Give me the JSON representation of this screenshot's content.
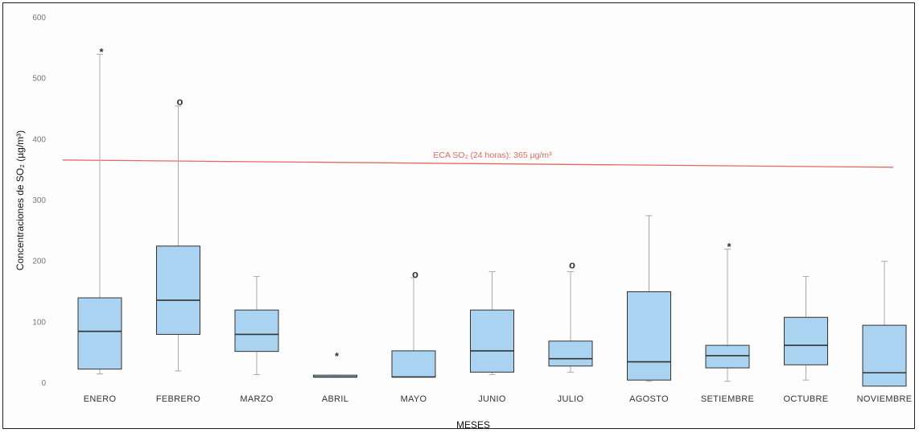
{
  "chart_data": {
    "type": "box",
    "xlabel": "MESES",
    "ylabel": "Concentraciones de SO₂ (µg/m³)",
    "ylim": [
      0,
      600
    ],
    "y_ticks": [
      0,
      100,
      200,
      300,
      400,
      500,
      600
    ],
    "grid": false,
    "categories": [
      "ENERO",
      "FEBRERO",
      "MARZO",
      "ABRIL",
      "MAYO",
      "JUNIO",
      "JULIO",
      "AGOSTO",
      "SETIEMBRE",
      "OCTUBRE",
      "NOVIEMBRE"
    ],
    "boxes": [
      {
        "min": 15,
        "q1": 23,
        "median": 85,
        "q3": 140,
        "max": 540,
        "outliers": [
          {
            "value": 550,
            "symbol": "*"
          }
        ]
      },
      {
        "min": 20,
        "q1": 80,
        "median": 136,
        "q3": 225,
        "max": 455,
        "outliers": [
          {
            "value": 463,
            "symbol": "o"
          }
        ]
      },
      {
        "min": 14,
        "q1": 52,
        "median": 80,
        "q3": 120,
        "max": 175,
        "outliers": []
      },
      {
        "min": 10,
        "q1": 10,
        "median": 10,
        "q3": 13,
        "max": 13,
        "outliers": [
          {
            "value": 50,
            "symbol": "*"
          }
        ]
      },
      {
        "min": 10,
        "q1": 10,
        "median": 10,
        "q3": 53,
        "max": 173,
        "outliers": [
          {
            "value": 180,
            "symbol": "o"
          }
        ]
      },
      {
        "min": 14,
        "q1": 18,
        "median": 53,
        "q3": 120,
        "max": 183,
        "outliers": []
      },
      {
        "min": 18,
        "q1": 28,
        "median": 40,
        "q3": 69,
        "max": 183,
        "outliers": [
          {
            "value": 195,
            "symbol": "o"
          }
        ]
      },
      {
        "min": 3,
        "q1": 5,
        "median": 35,
        "q3": 150,
        "max": 275,
        "outliers": []
      },
      {
        "min": 3,
        "q1": 25,
        "median": 45,
        "q3": 62,
        "max": 220,
        "outliers": [
          {
            "value": 230,
            "symbol": "*"
          }
        ]
      },
      {
        "min": 5,
        "q1": 30,
        "median": 62,
        "q3": 108,
        "max": 175,
        "outliers": []
      },
      {
        "min": -5,
        "q1": -5,
        "median": 17,
        "q3": 95,
        "max": 200,
        "outliers": []
      }
    ],
    "reference_line": {
      "label": "ECA SO₂ (24 horas): 365 µg/m³",
      "value": 365,
      "color": "#e8685c"
    },
    "colors": {
      "box_fill": "#a9d3f0",
      "box_stroke": "#333333",
      "whisker": "#aaaaaa"
    }
  }
}
